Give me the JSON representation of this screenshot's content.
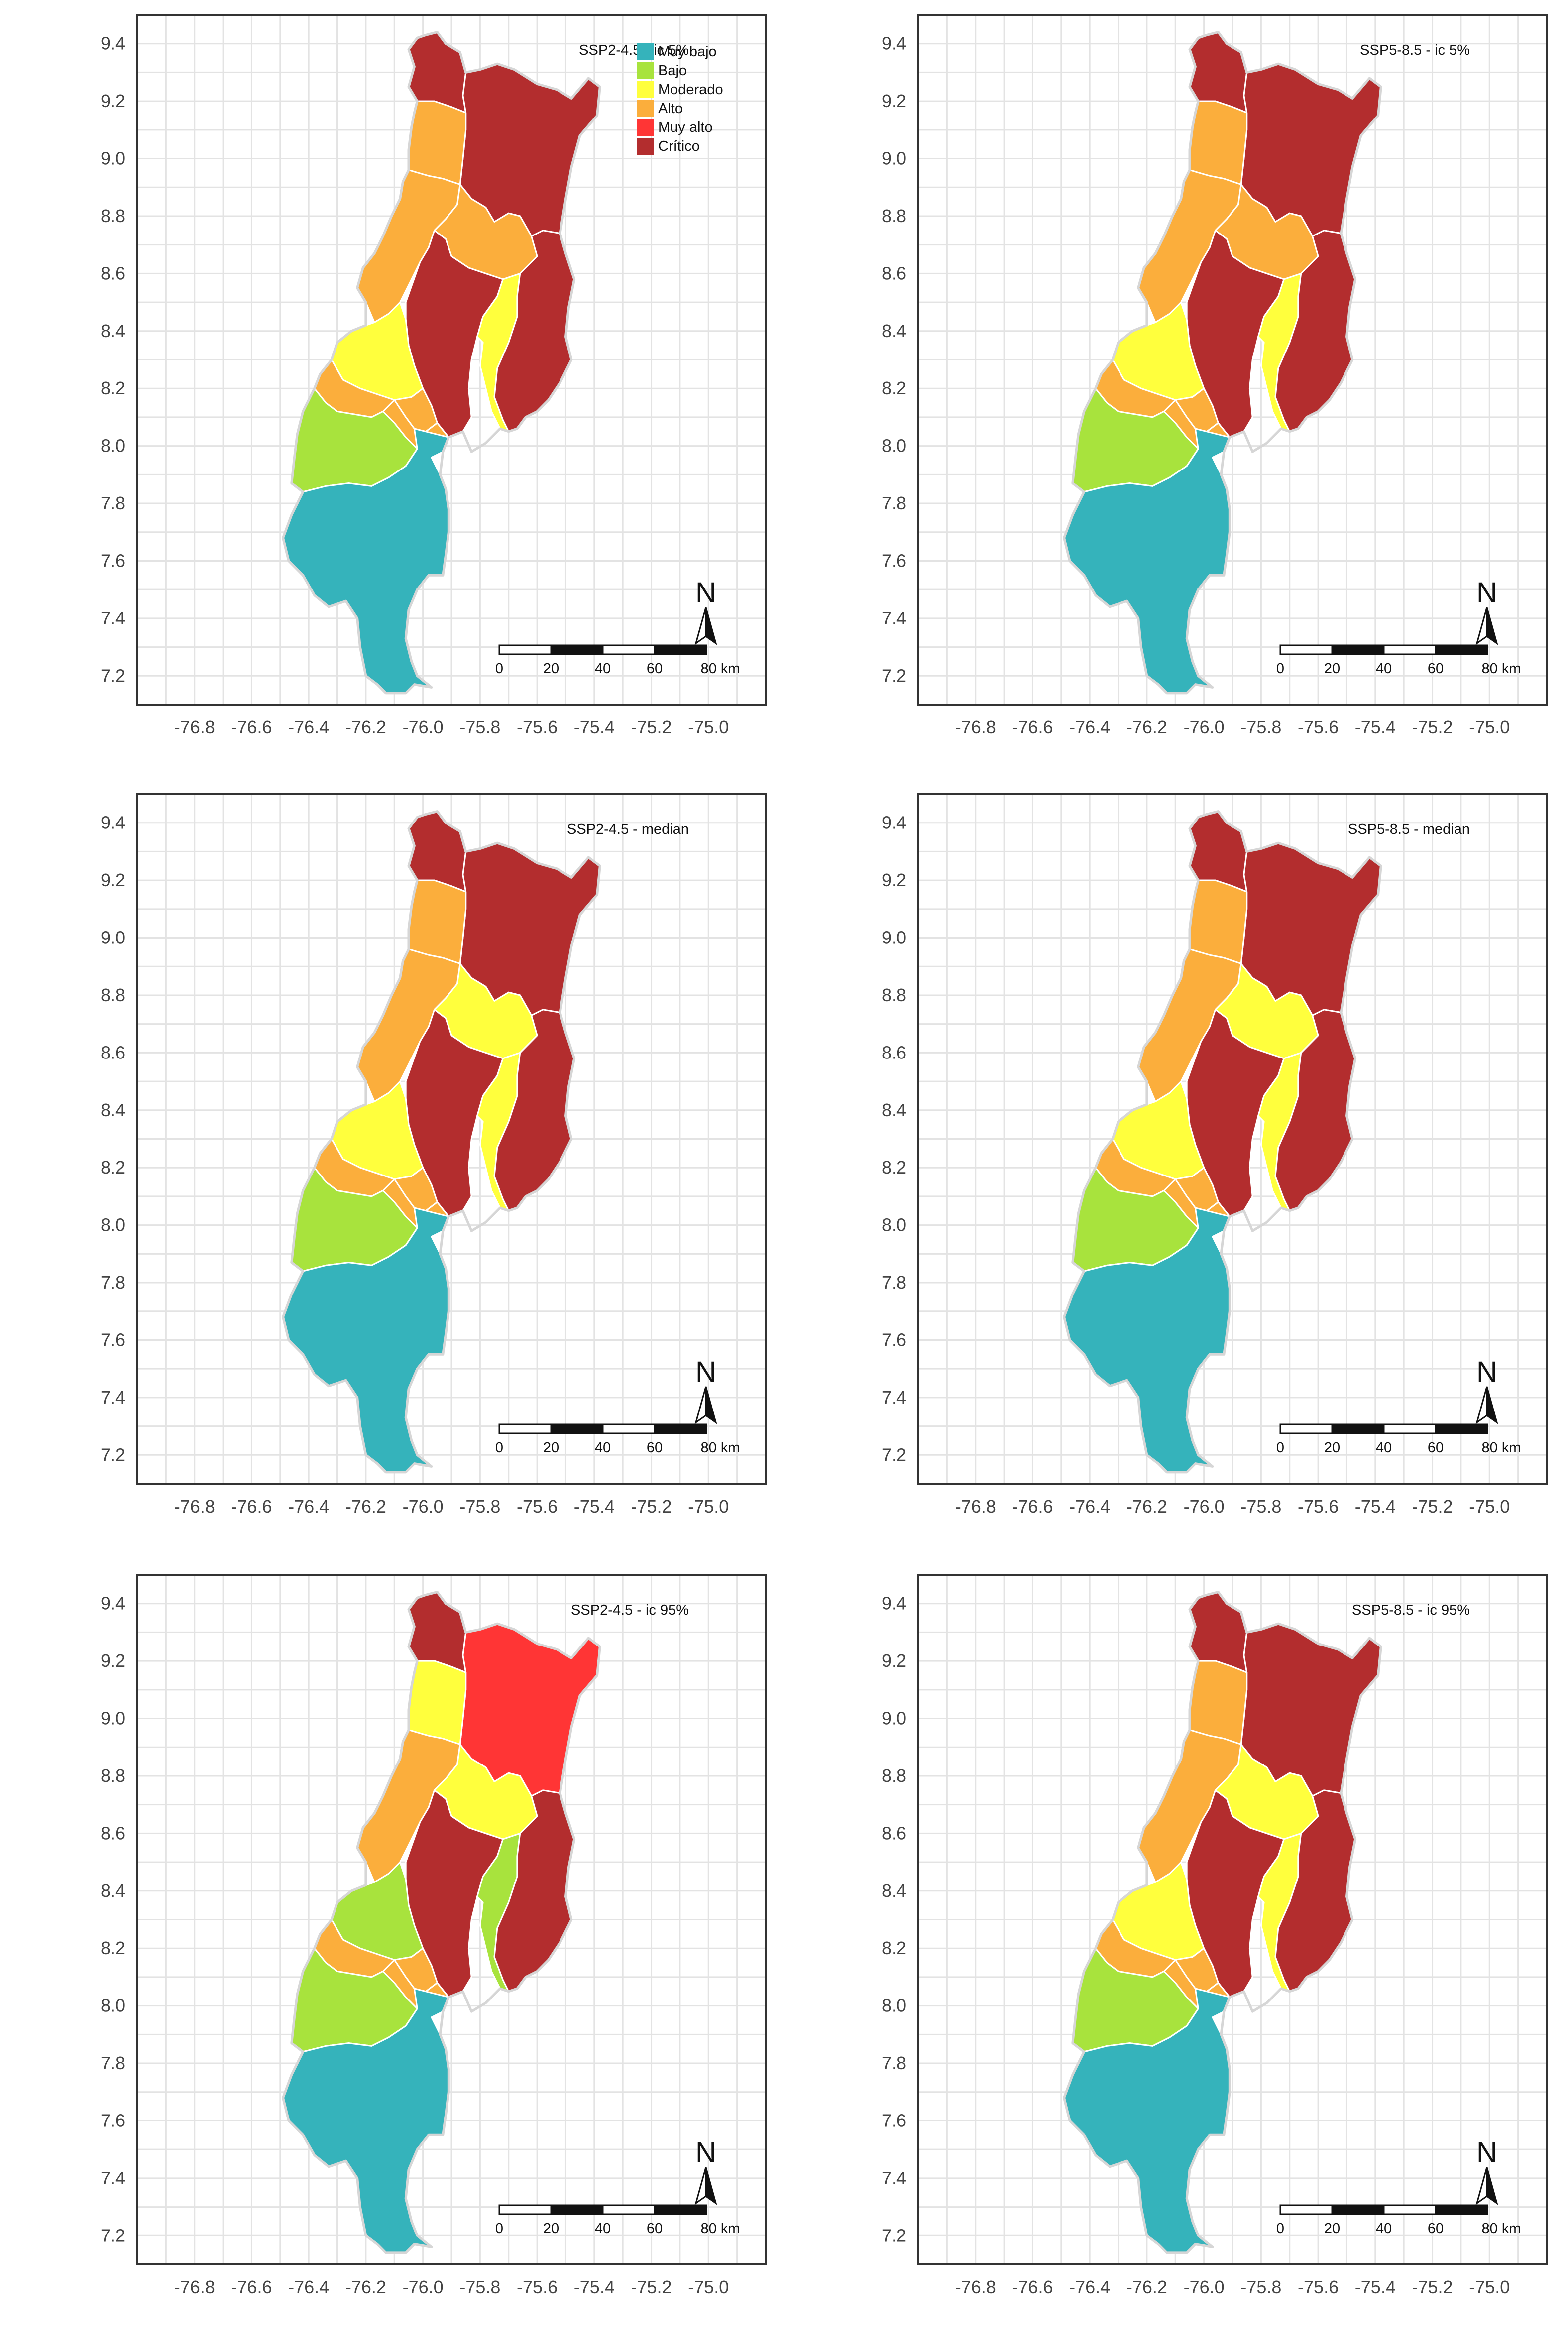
{
  "chart_data": {
    "type": "choropleth",
    "x_ticks": [
      "-76.8",
      "-76.6",
      "-76.4",
      "-76.2",
      "-76.0",
      "-75.8",
      "-75.6",
      "-75.4",
      "-75.2",
      "-75.0"
    ],
    "y_ticks": [
      "9.4",
      "9.2",
      "9.0",
      "8.8",
      "8.6",
      "8.4",
      "8.2",
      "8.0",
      "7.8",
      "7.6",
      "7.4",
      "7.2"
    ],
    "xlim": [
      -77.0,
      -74.8
    ],
    "ylim": [
      7.1,
      9.5
    ],
    "grid": true,
    "legend": {
      "position": "top-right",
      "items": [
        {
          "label": "Muy bajo",
          "color": "#35b3bb"
        },
        {
          "label": "Bajo",
          "color": "#a8e33d"
        },
        {
          "label": "Moderado",
          "color": "#ffff3d"
        },
        {
          "label": "Alto",
          "color": "#fbae3c"
        },
        {
          "label": "Muy alto",
          "color": "#ff3535"
        },
        {
          "label": "Crítico",
          "color": "#b32d2e"
        }
      ]
    },
    "scale_bar": {
      "labels": [
        "0",
        "20",
        "40",
        "60",
        "80 km"
      ]
    },
    "north_arrow": {
      "label": "N",
      "icon": "north-arrow-icon"
    },
    "regions": [
      "R1",
      "R2",
      "R3",
      "R4",
      "R5",
      "R6",
      "R7",
      "R8",
      "R9",
      "R10",
      "R11",
      "R12",
      "R13",
      "R14",
      "R15",
      "R16",
      "R17",
      "R18",
      "R19",
      "R20"
    ],
    "panels": [
      {
        "title": "SSP2-4.5 - ic 5%",
        "show_legend": true,
        "classes": [
          "Crítico",
          "Crítico",
          "Alto",
          "Alto",
          "Alto",
          "Crítico",
          "Moderado",
          "Crítico",
          "Moderado",
          "Alto",
          "Alto",
          "Alto",
          "Bajo",
          "Muy bajo",
          "Muy bajo",
          "Muy bajo",
          "Muy bajo",
          "Muy bajo",
          "Muy bajo",
          "Muy bajo"
        ]
      },
      {
        "title": "SSP5-8.5 - ic 5%",
        "show_legend": false,
        "classes": [
          "Crítico",
          "Crítico",
          "Alto",
          "Alto",
          "Alto",
          "Crítico",
          "Moderado",
          "Crítico",
          "Moderado",
          "Alto",
          "Alto",
          "Alto",
          "Bajo",
          "Muy bajo",
          "Muy bajo",
          "Muy bajo",
          "Muy bajo",
          "Muy bajo",
          "Muy bajo",
          "Muy bajo"
        ]
      },
      {
        "title": "SSP2-4.5 - median",
        "show_legend": false,
        "classes": [
          "Crítico",
          "Crítico",
          "Alto",
          "Alto",
          "Moderado",
          "Crítico",
          "Moderado",
          "Crítico",
          "Moderado",
          "Alto",
          "Alto",
          "Alto",
          "Bajo",
          "Muy bajo",
          "Muy bajo",
          "Muy bajo",
          "Muy bajo",
          "Muy bajo",
          "Muy bajo",
          "Muy bajo"
        ]
      },
      {
        "title": "SSP5-8.5 - median",
        "show_legend": false,
        "classes": [
          "Crítico",
          "Crítico",
          "Alto",
          "Alto",
          "Moderado",
          "Crítico",
          "Moderado",
          "Crítico",
          "Moderado",
          "Alto",
          "Alto",
          "Alto",
          "Bajo",
          "Muy bajo",
          "Muy bajo",
          "Muy bajo",
          "Muy bajo",
          "Muy bajo",
          "Muy bajo",
          "Muy bajo"
        ]
      },
      {
        "title": "SSP2-4.5 - ic 95%",
        "show_legend": false,
        "classes": [
          "Crítico",
          "Muy alto",
          "Moderado",
          "Alto",
          "Moderado",
          "Crítico",
          "Bajo",
          "Crítico",
          "Bajo",
          "Alto",
          "Alto",
          "Alto",
          "Bajo",
          "Muy bajo",
          "Muy bajo",
          "Muy bajo",
          "Muy bajo",
          "Muy bajo",
          "Muy bajo",
          "Muy bajo"
        ]
      },
      {
        "title": "SSP5-8.5 - ic 95%",
        "show_legend": false,
        "classes": [
          "Crítico",
          "Crítico",
          "Alto",
          "Alto",
          "Moderado",
          "Crítico",
          "Moderado",
          "Crítico",
          "Moderado",
          "Alto",
          "Alto",
          "Alto",
          "Bajo",
          "Muy bajo",
          "Muy bajo",
          "Muy bajo",
          "Muy bajo",
          "Muy bajo",
          "Muy bajo",
          "Muy bajo"
        ]
      }
    ]
  }
}
